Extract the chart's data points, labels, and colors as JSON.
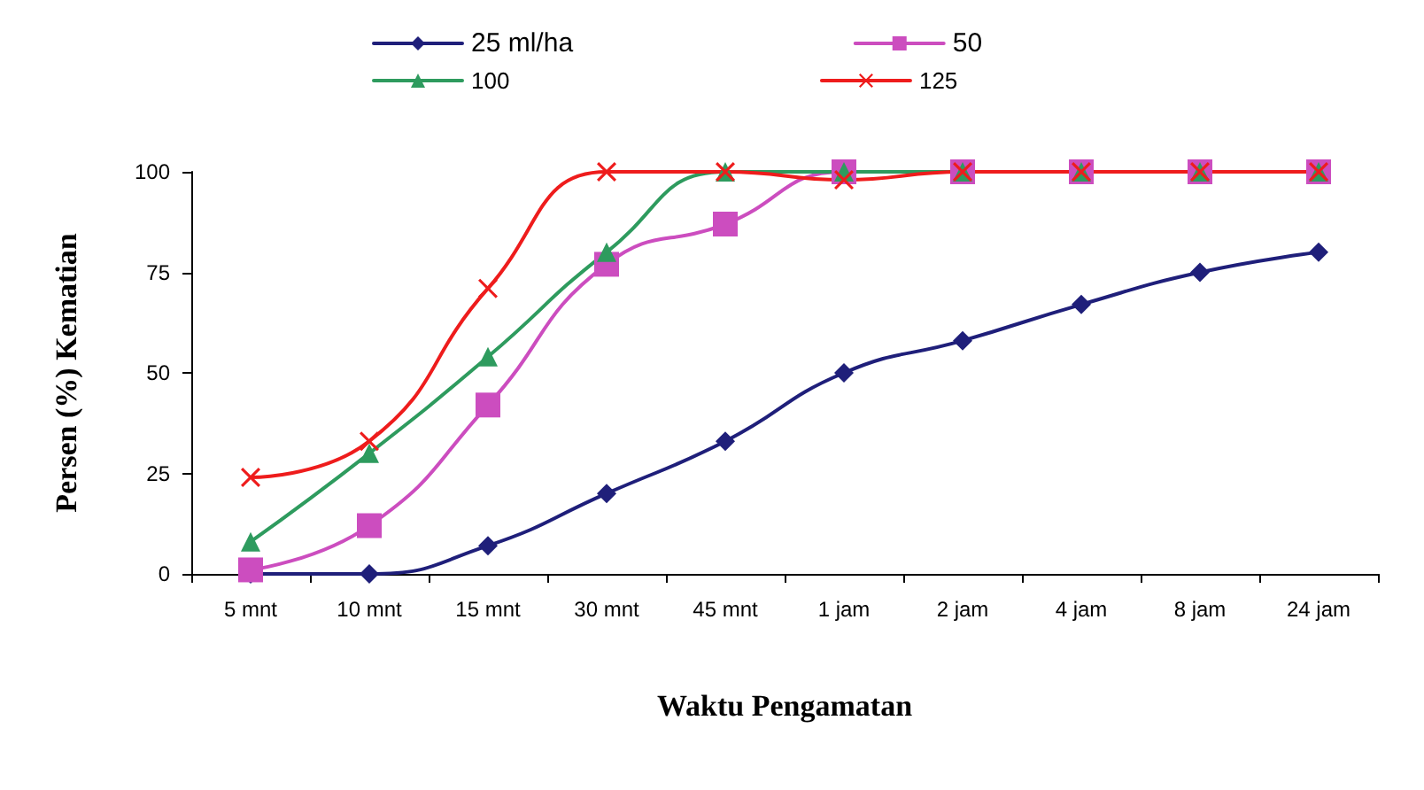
{
  "chart_data": {
    "type": "line",
    "xlabel": "Waktu Pengamatan",
    "ylabel": "Persen (%) Kematian",
    "categories": [
      "5 mnt",
      "10 mnt",
      "15 mnt",
      "30 mnt",
      "45 mnt",
      "1 jam",
      "2 jam",
      "4 jam",
      "8 jam",
      "24 jam"
    ],
    "series": [
      {
        "name": "25 ml/ha",
        "color": "#1f1f7a",
        "marker": "diamond",
        "values": [
          0,
          0,
          7,
          20,
          33,
          50,
          58,
          67,
          75,
          80
        ]
      },
      {
        "name": "50",
        "color": "#cc4dbf",
        "marker": "square",
        "values": [
          1,
          12,
          42,
          77,
          87,
          100,
          100,
          100,
          100,
          100
        ]
      },
      {
        "name": "100",
        "color": "#2e9b5e",
        "marker": "triangle",
        "values": [
          8,
          30,
          54,
          80,
          100,
          100,
          100,
          100,
          100,
          100
        ]
      },
      {
        "name": "125",
        "color": "#ee1c1c",
        "marker": "cross",
        "values": [
          24,
          33,
          71,
          100,
          100,
          98,
          100,
          100,
          100,
          100
        ]
      }
    ],
    "ylim": [
      0,
      100
    ],
    "yticks": [
      0,
      25,
      50,
      75,
      100
    ],
    "grid": false,
    "legend": "top",
    "line_style": "solid"
  }
}
